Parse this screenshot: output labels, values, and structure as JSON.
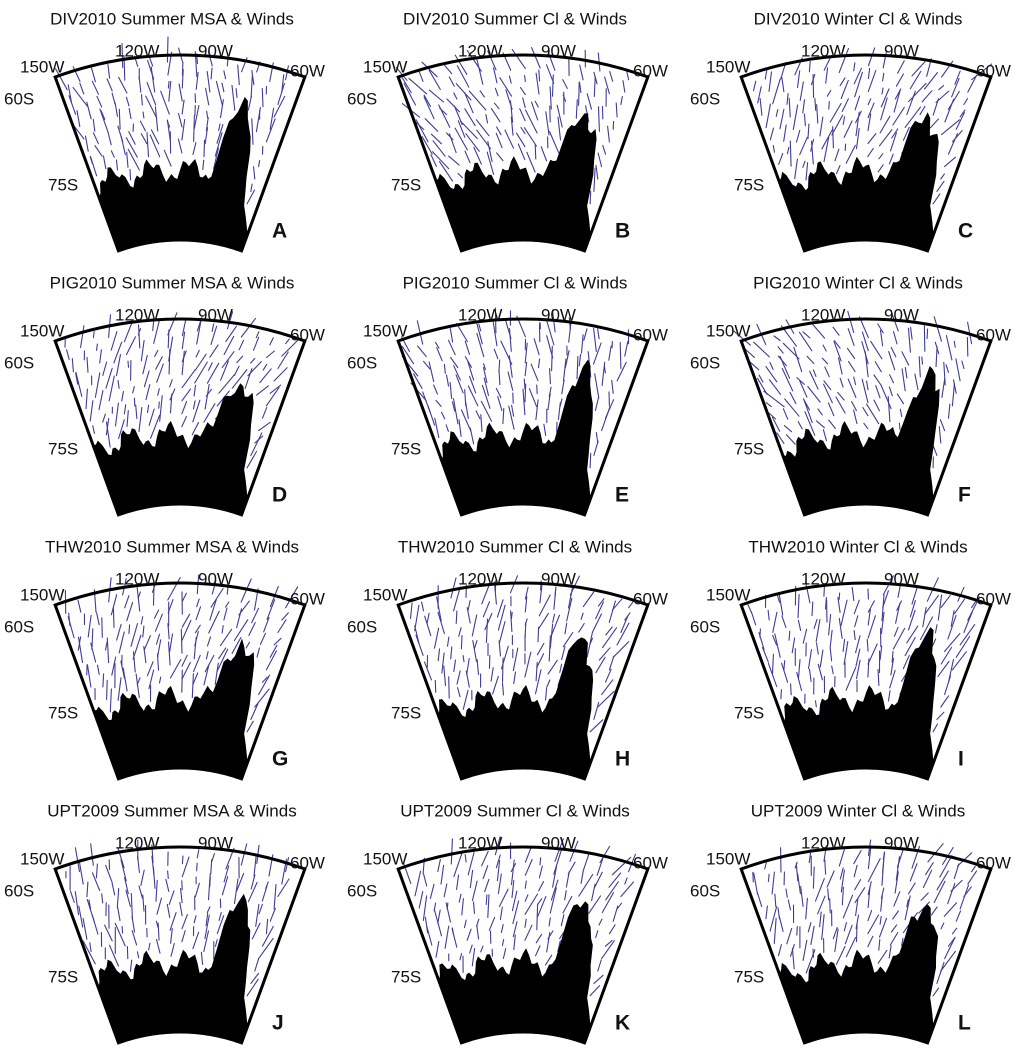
{
  "panels": [
    {
      "title": "DIV2010 Summer MSA & Winds",
      "letter": "A",
      "lon_labels": [
        "150W",
        "120W",
        "90W",
        "60W"
      ],
      "lat_labels": [
        "60S",
        "75S"
      ]
    },
    {
      "title": "DIV2010 Summer Cl & Winds",
      "letter": "B",
      "lon_labels": [
        "150W",
        "120W",
        "90W",
        "60W"
      ],
      "lat_labels": [
        "60S",
        "75S"
      ]
    },
    {
      "title": "DIV2010 Winter Cl & Winds",
      "letter": "C",
      "lon_labels": [
        "150W",
        "120W",
        "90W",
        "60W"
      ],
      "lat_labels": [
        "60S",
        "75S"
      ]
    },
    {
      "title": "PIG2010 Summer MSA & Winds",
      "letter": "D",
      "lon_labels": [
        "150W",
        "120W",
        "90W",
        "60W"
      ],
      "lat_labels": [
        "60S",
        "75S"
      ]
    },
    {
      "title": "PIG2010 Summer Cl & Winds",
      "letter": "E",
      "lon_labels": [
        "150W",
        "120W",
        "90W",
        "60W"
      ],
      "lat_labels": [
        "60S",
        "75S"
      ]
    },
    {
      "title": "PIG2010 Winter Cl & Winds",
      "letter": "F",
      "lon_labels": [
        "150W",
        "120W",
        "90W",
        "60W"
      ],
      "lat_labels": [
        "60S",
        "75S"
      ]
    },
    {
      "title": "THW2010 Summer MSA & Winds",
      "letter": "G",
      "lon_labels": [
        "150W",
        "120W",
        "90W",
        "60W"
      ],
      "lat_labels": [
        "60S",
        "75S"
      ]
    },
    {
      "title": "THW2010 Summer Cl & Winds",
      "letter": "H",
      "lon_labels": [
        "150W",
        "120W",
        "90W",
        "60W"
      ],
      "lat_labels": [
        "60S",
        "75S"
      ]
    },
    {
      "title": "THW2010 Winter Cl & Winds",
      "letter": "I",
      "lon_labels": [
        "150W",
        "120W",
        "90W",
        "60W"
      ],
      "lat_labels": [
        "60S",
        "75S"
      ]
    },
    {
      "title": "UPT2009 Summer MSA & Winds",
      "letter": "J",
      "lon_labels": [
        "150W",
        "120W",
        "90W",
        "60W"
      ],
      "lat_labels": [
        "60S",
        "75S"
      ]
    },
    {
      "title": "UPT2009 Summer Cl & Winds",
      "letter": "K",
      "lon_labels": [
        "150W",
        "120W",
        "90W",
        "60W"
      ],
      "lat_labels": [
        "60S",
        "75S"
      ]
    },
    {
      "title": "UPT2009 Winter Cl & Winds",
      "letter": "L",
      "lon_labels": [
        "150W",
        "120W",
        "90W",
        "60W"
      ],
      "lat_labels": [
        "60S",
        "75S"
      ]
    }
  ]
}
